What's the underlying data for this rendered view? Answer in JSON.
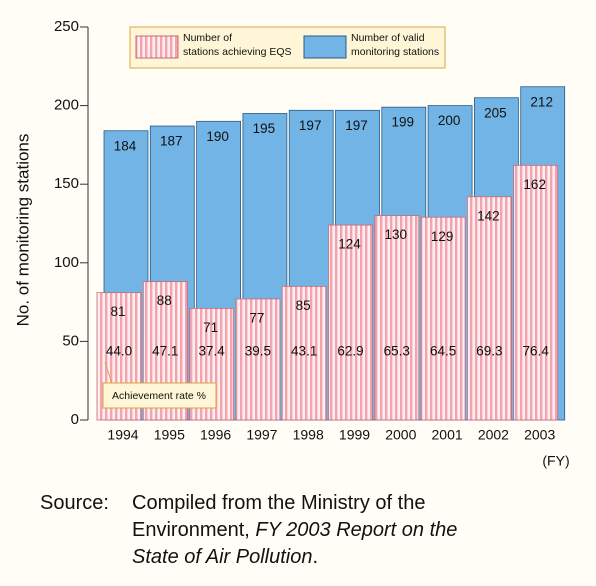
{
  "chart_data": {
    "type": "overlap_bar",
    "y_label": "No. of monitoring stations",
    "x_unit": "(FY)",
    "categories": [
      "1994",
      "1995",
      "1996",
      "1997",
      "1998",
      "1999",
      "2000",
      "2001",
      "2002",
      "2003"
    ],
    "series": [
      {
        "name": "Number of valid monitoring stations",
        "color": "#72b4e6",
        "values": [
          184,
          187,
          190,
          195,
          197,
          197,
          199,
          200,
          205,
          212
        ]
      },
      {
        "name": "Number of stations achieving EQS",
        "color": "#f3a3ad",
        "values": [
          81,
          88,
          71,
          77,
          85,
          124,
          130,
          129,
          142,
          162
        ]
      }
    ],
    "achievement_rate": {
      "name": "Achievement rate %",
      "values": [
        44.0,
        47.1,
        37.4,
        39.5,
        43.1,
        62.9,
        65.3,
        64.5,
        69.3,
        76.4
      ],
      "value_labels": [
        "44.0",
        "47.1",
        "37.4",
        "39.5",
        "43.1",
        "62.9",
        "65.3",
        "64.5",
        "69.3",
        "76.4"
      ]
    },
    "ylim": [
      0,
      250
    ],
    "yticks": [
      0,
      50,
      100,
      150,
      200,
      250
    ]
  },
  "source": {
    "prefix": "Source:",
    "text": "Compiled from the Ministry of the Environment, ",
    "title": "FY 2003 Report on the State of Air Pollution",
    "end": "."
  }
}
